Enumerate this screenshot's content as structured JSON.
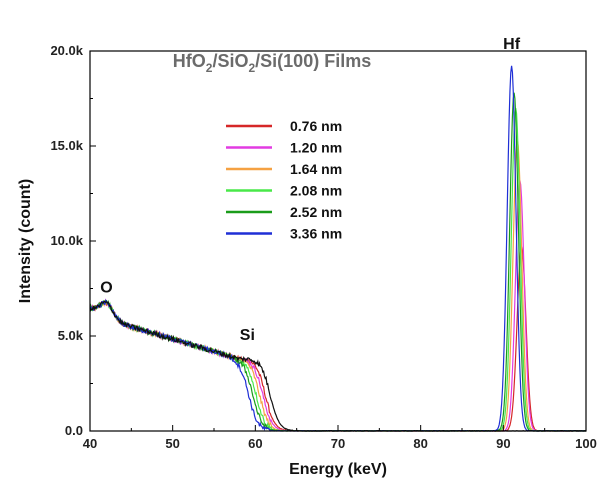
{
  "chart_data": {
    "type": "line",
    "title": {
      "parts": [
        {
          "text": "HfO"
        },
        {
          "text": "2",
          "sub": true
        },
        {
          "text": "/SiO"
        },
        {
          "text": "2",
          "sub": true
        },
        {
          "text": "/Si(100) Films"
        }
      ]
    },
    "xlabel": "Energy (keV)",
    "ylabel": "Intensity (count)",
    "xlim": [
      40,
      100
    ],
    "ylim": [
      0,
      20000
    ],
    "x_ticks": [
      40,
      50,
      60,
      70,
      80,
      90,
      100
    ],
    "x_tick_labels": [
      "40",
      "50",
      "60",
      "70",
      "80",
      "90",
      "100"
    ],
    "y_ticks": [
      0,
      5000,
      10000,
      15000,
      20000
    ],
    "y_tick_labels": [
      "0.0",
      "5.0k",
      "10.0k",
      "15.0k",
      "20.0k"
    ],
    "grid": false,
    "legend_position": "upper-middle",
    "annotations": [
      {
        "text": "O",
        "x": 42,
        "y": 7300
      },
      {
        "text": "Si",
        "x": 60,
        "y": 4800
      },
      {
        "text": "Hf",
        "x": 91,
        "y": 20100
      }
    ],
    "series": [
      {
        "name": "0.76 nm",
        "color": "#d62728",
        "hf_center": 92.2,
        "hf_peak": 9700,
        "si_edge": 61.2
      },
      {
        "name": "1.20 nm",
        "color": "#e23be2",
        "hf_center": 92.0,
        "hf_peak": 13200,
        "si_edge": 60.9
      },
      {
        "name": "1.64 nm",
        "color": "#f5a142",
        "hf_center": 91.7,
        "hf_peak": 15300,
        "si_edge": 60.5
      },
      {
        "name": "2.08 nm",
        "color": "#49e849",
        "hf_center": 91.5,
        "hf_peak": 17000,
        "si_edge": 60.1
      },
      {
        "name": "2.52 nm",
        "color": "#1a9c1a",
        "hf_center": 91.3,
        "hf_peak": 17800,
        "si_edge": 59.7
      },
      {
        "name": "3.36 nm",
        "color": "#1f2fd6",
        "hf_center": 91.0,
        "hf_peak": 19200,
        "si_edge": 59.2
      },
      {
        "name": "",
        "color": "#111111",
        "hf_center": 0,
        "hf_peak": 0,
        "si_edge": 61.8
      }
    ]
  }
}
